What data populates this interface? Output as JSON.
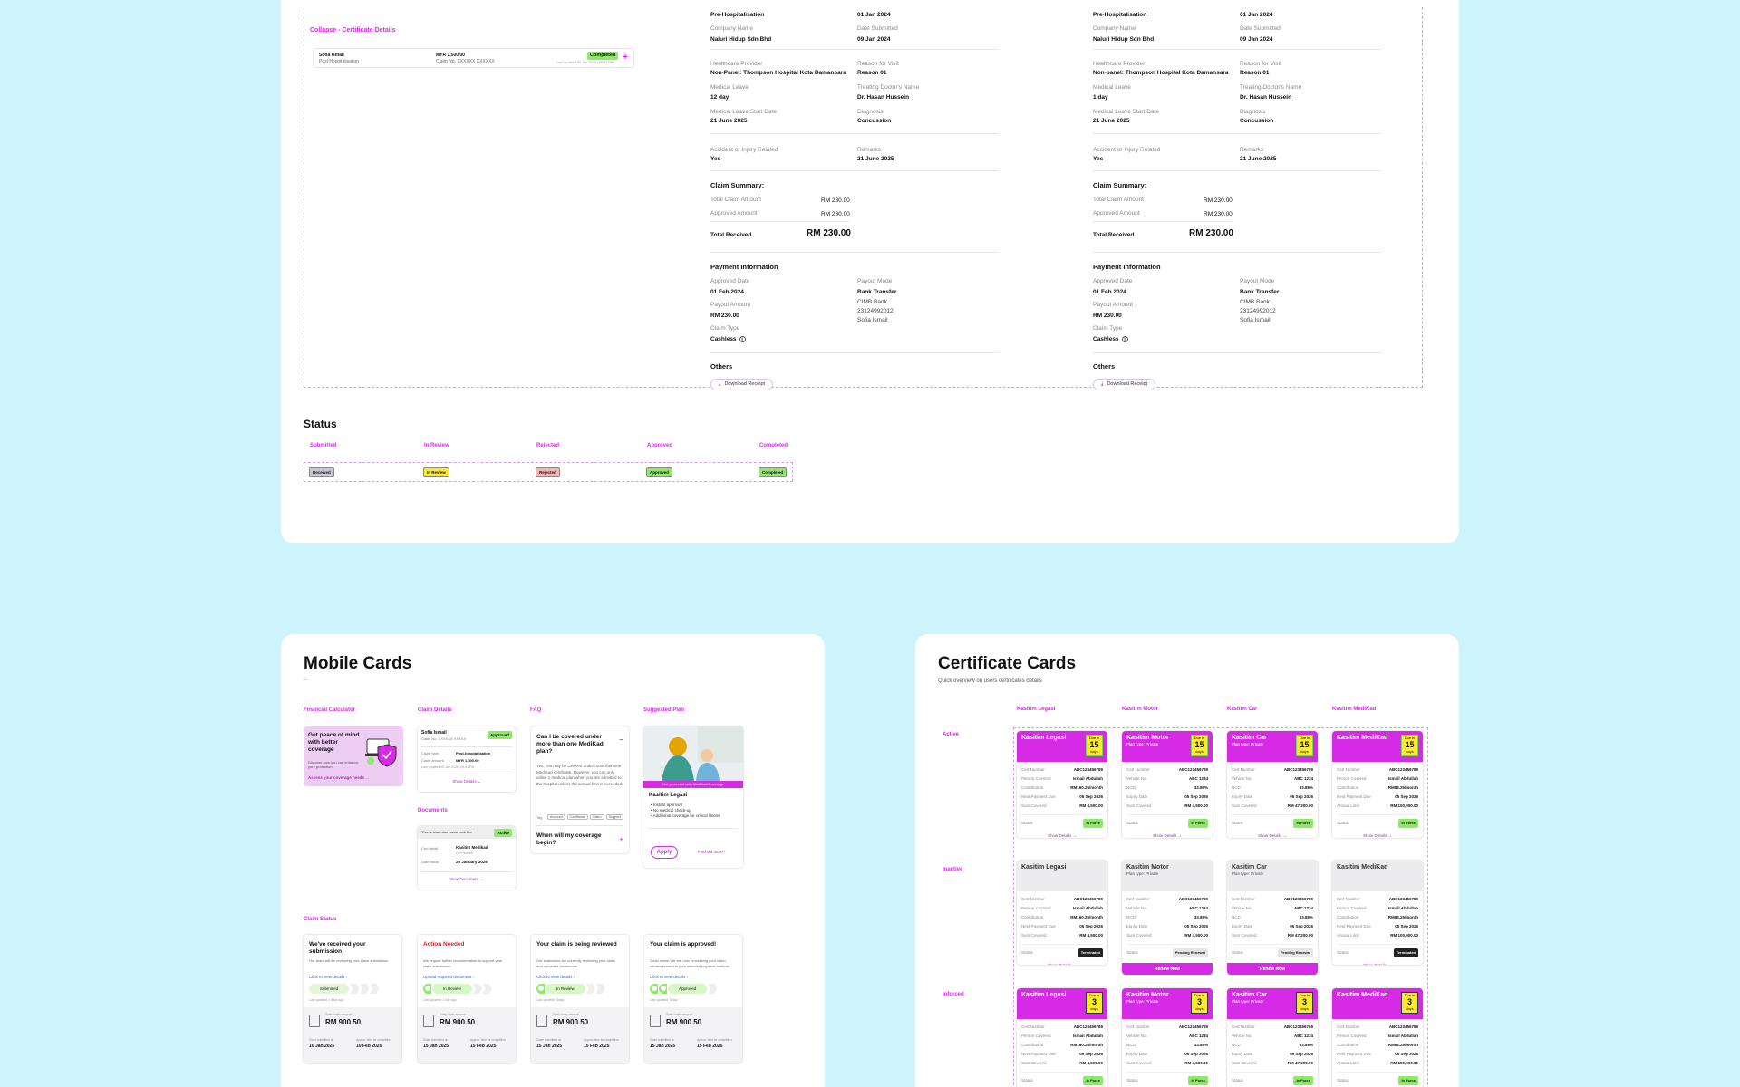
{
  "top": {
    "collapse_link": "Collapse - Certificate Details",
    "cert": {
      "name": "Sofia Ismail",
      "sub": "Post Hospitalisation",
      "amount": "MYR 1,500.00",
      "claim_no": "Claim No. XXXXXX XXXXXX",
      "status": "Completed",
      "updated": "Last updated 05 Jan 2025 | 09:41 PM"
    },
    "details": [
      {
        "type_val": "Pre-Hospitalisation",
        "date_val": "01 Jan 2024",
        "company_label": "Company Name",
        "company_val": "Naluri Hidup Sdn Bhd",
        "submitted_label": "Date Submitted",
        "submitted_val": "09 Jan 2024",
        "provider_label": "Healthcare Provider",
        "provider_val": "Non-Panel: Thompson Hospital Kota Damansara",
        "reason_label": "Reason for Visit",
        "reason_val": "Reason 01",
        "leave_label": "Medical Leave",
        "leave_val": "12 day",
        "doctor_label": "Treating Doctor's Name",
        "doctor_val": "Dr. Hasan Hussein",
        "leave_start_label": "Medical Leave Start Date",
        "leave_start_val": "21 June 2025",
        "diag_label": "Diagnosis",
        "diag_val": "Concussion",
        "accident_label": "Accident or Injury Related",
        "accident_val": "Yes",
        "remarks_label": "Remarks",
        "remarks_val": "21 June 2025",
        "summary_title": "Claim Summary:",
        "total_claim_label": "Total Claim Amount",
        "total_claim_val": "RM 230.00",
        "approved_label": "Approved Amount",
        "approved_val": "RM 230.00",
        "total_received_label": "Total Received",
        "total_received_val": "RM 230.00",
        "payment_title": "Payment Information",
        "approved_date_label": "Approved Date",
        "approved_date_val": "01 Feb 2024",
        "payout_mode_label": "Payout Mode",
        "payout_mode_val": "Bank Transfer",
        "payout_amount_label": "Payout Amount",
        "payout_amount_val": "RM 230.00",
        "bank_val": "CIMB Bank",
        "account_val": "23124992012",
        "account_name": "Sofia Ismail",
        "claim_type_label": "Claim Type",
        "claim_type_val": "Cashless",
        "others_title": "Others",
        "download_btn": "Download Receipt"
      },
      {
        "type_val": "Pre-Hospitalisation",
        "date_val": "01 Jan 2024",
        "company_label": "Company Name",
        "company_val": "Naluri Hidup Sdn Bhd",
        "submitted_label": "Date Submitted",
        "submitted_val": "09 Jan 2024",
        "provider_label": "Healthcare Provider",
        "provider_val": "Non-panel: Thompson Hospital Kota Damansara",
        "reason_label": "Reason for Visit",
        "reason_val": "Reason 01",
        "leave_label": "Medical Leave",
        "leave_val": "1 day",
        "doctor_label": "Treating Doctor's Name",
        "doctor_val": "Dr. Hasan Hussein",
        "leave_start_label": "Medical Leave Start Date",
        "leave_start_val": "21 June 2025",
        "diag_label": "Diagnosis",
        "diag_val": "Concussion",
        "accident_label": "Accident or Injury Related",
        "accident_val": "Yes",
        "remarks_label": "Remarks",
        "remarks_val": "21 June 2025",
        "summary_title": "Claim Summary:",
        "total_claim_label": "Total Claim Amount",
        "total_claim_val": "RM 230.00",
        "approved_label": "Approved Amount",
        "approved_val": "RM 230.00",
        "total_received_label": "Total Received",
        "total_received_val": "RM 230.00",
        "payment_title": "Payment Information",
        "approved_date_label": "Approved Date",
        "approved_date_val": "01 Feb 2024",
        "payout_mode_label": "Payout Mode",
        "payout_mode_val": "Bank Transfer",
        "payout_amount_label": "Payout Amount",
        "payout_amount_val": "RM 230.00",
        "bank_val": "CIMB Bank",
        "account_val": "23124992012",
        "account_name": "Sofia Ismail",
        "claim_type_label": "Claim Type",
        "claim_type_val": "Cashless",
        "others_title": "Others",
        "download_btn": "Download Receipt"
      }
    ]
  },
  "status": {
    "title": "Status",
    "headers": [
      "Submitted",
      "In Review",
      "Rejected",
      "Approved",
      "Completed"
    ],
    "tags": [
      {
        "text": "Received",
        "bg": "#c7c7d6"
      },
      {
        "text": "In Review",
        "bg": "#fde92e"
      },
      {
        "text": "Rejected",
        "bg": "#f7b4b4"
      },
      {
        "text": "Approved",
        "bg": "#8ee86a"
      },
      {
        "text": "Completed",
        "bg": "#8ee86a"
      }
    ]
  },
  "mobile": {
    "title": "Mobile Cards",
    "subtitle": "--",
    "labels": {
      "calc": "Financial Calculator",
      "claim_details": "Claim Details",
      "faq": "FAQ",
      "suggested": "Suggested Plan",
      "documents": "Documents",
      "claim_status": "Claim Status"
    },
    "calc": {
      "title": "Get peace of mind with better coverage",
      "desc": "Discover how you can enhance your protection",
      "link": "Assess your coverage needs"
    },
    "claim": {
      "name": "Sofia Ismail",
      "id": "Claim No. XXXXXX XXXXX",
      "status": "Approved",
      "type_label": "Claim type",
      "type_val": "Post-hospitalisation",
      "amount_label": "Claim amount",
      "amount_val": "MYR 1,500.00",
      "updated": "Last updated 05 Jan 2025 | 09:41 PM",
      "link": "Show Details"
    },
    "doc": {
      "title": "This is short doc name look like",
      "status": "Active",
      "cert_label": "Cert detail",
      "cert_val": "Kasitim Medikad",
      "cert_sub": "Cert number",
      "issue_label": "Date issue",
      "issue_val": "20 January 2025",
      "link": "View Document"
    },
    "faq": {
      "q1": "Can I be covered under more than one MediKad plan?",
      "a1": "Yes, you may be covered under more than one MediKad certificate. However, you can only utilise 1 medical plan when you are admitted to the hospital unless the annual limit is exceeded.",
      "tag_label": "Tag",
      "tags": [
        "Account",
        "Certificate",
        "Claim",
        "Support"
      ],
      "q2": "When will my coverage begin?"
    },
    "plan": {
      "banner": "Get protected with MediKad Coverage",
      "name": "Kasitim Legasi",
      "items": [
        "Instant approval",
        "No medical check-up",
        "Additional coverage for critical illness"
      ],
      "apply": "Apply",
      "more": "Find out more"
    },
    "statuses": [
      {
        "title": "We've received your submission",
        "desc": "Our team will be reviewing your claim submission",
        "link": "Click to view details",
        "stage": "Submitted",
        "time": "Last updated 1 days ago",
        "amount_label": "Total claim amount",
        "amount": "RM 900.50",
        "d1l": "Claim submitted on",
        "d1": "10 Jan 2025",
        "d2l": "Approx. time for completion",
        "d2": "10 Feb 2025",
        "title_color": "#111"
      },
      {
        "title": "Action Needed",
        "desc": "We require further documentation to support your claim submission.",
        "link": "Upload required document",
        "stage": "In Review",
        "time": "Last updated 1 day ago",
        "amount_label": "Total claim amount",
        "amount": "RM 900.50",
        "d1l": "Claim submitted on",
        "d1": "15 Jan 2025",
        "d2l": "Approx. time for completion",
        "d2": "15 Feb 2025",
        "title_color": "#e02424"
      },
      {
        "title": "Your claim is being reviewed",
        "desc": "Our evaluators are currently reviewing your claim and uploaded documents.",
        "link": "Click to view details",
        "stage": "In Review",
        "time": "Last updated Today",
        "amount_label": "Total claim amount",
        "amount": "RM 900.50",
        "d1l": "Claim submitted on",
        "d1": "15 Jan 2025",
        "d2l": "Approx. time for completion",
        "d2": "15 Feb 2025",
        "title_color": "#111"
      },
      {
        "title": "Your claim is approved!",
        "desc": "Good news! We are now processing your claim reimbursement to your selected payment method.",
        "link": "Click to view details",
        "stage": "Approved",
        "time": "Last updated Today",
        "amount_label": "Total claim amount",
        "amount": "RM 900.50",
        "d1l": "Claim submitted on",
        "d1": "15 Jan 2025",
        "d2l": "Approx. time for completion",
        "d2": "15 Feb 2025",
        "title_color": "#111"
      }
    ]
  },
  "certs": {
    "title": "Certificate Cards",
    "subtitle": "Quick overview on users certificates details",
    "columns": [
      "Kasitim Legasi",
      "Kasitim Motor",
      "Kasitim Car",
      "Kasitim MediKad"
    ],
    "rows": [
      "Active",
      "Inactive",
      "Inforced"
    ],
    "plan_type": "Plan type: Private",
    "fields": [
      [
        [
          "Cert Number",
          "ABC123456789"
        ],
        [
          "Person Covered",
          "Ismail Abdullah"
        ],
        [
          "Contribution",
          "RM160.25/month"
        ],
        [
          "Next Payment Due",
          "05 Sep 2026"
        ],
        [
          "Sum Covered",
          "RM 4,500.00"
        ]
      ],
      [
        [
          "Cert Number",
          "ABC123456789"
        ],
        [
          "Vehicle No.",
          "ABC 1234"
        ],
        [
          "NCD",
          "33.89%"
        ],
        [
          "Expiry Date",
          "05 Sep 2026"
        ],
        [
          "Sum Covered",
          "RM 4,500.00"
        ]
      ],
      [
        [
          "Cert Number",
          "ABC123456789"
        ],
        [
          "Vehicle No.",
          "ABC 1234"
        ],
        [
          "NCD",
          "33.89%"
        ],
        [
          "Expiry Date",
          "05 Sep 2026"
        ],
        [
          "Sum Covered",
          "RM 47,200.00"
        ]
      ],
      [
        [
          "Cert Number",
          "ABC123456789"
        ],
        [
          "Person Covered",
          "Ismail Abdullah"
        ],
        [
          "Contribution",
          "RM83.25/month"
        ],
        [
          "Next Payment Due",
          "05 Sep 2026"
        ],
        [
          "Annual Limit",
          "RM 100,000.00"
        ]
      ]
    ],
    "status_label": "Status",
    "active": {
      "status": "In Force",
      "days": "15",
      "days_top": "Due in",
      "days_bottom": "days",
      "link": "Show Details"
    },
    "inactive": [
      {
        "status": "Terminated",
        "footer": "Show Details",
        "footer_btn": false
      },
      {
        "status": "Pending Renewal",
        "footer": "Renew Now",
        "footer_btn": true
      },
      {
        "status": "Pending Renewal",
        "footer": "Renew Now",
        "footer_btn": true
      },
      {
        "status": "Terminated",
        "footer": "Show Details",
        "footer_btn": false
      }
    ],
    "inforced": {
      "status": "In Force",
      "days": "3",
      "days_top": "Due in",
      "days_bottom": "days"
    }
  },
  "colors": {
    "accent": "#d62ae6",
    "green": "#8ee86a",
    "yellow": "#fde92e",
    "bg": "#cdf3fb"
  }
}
